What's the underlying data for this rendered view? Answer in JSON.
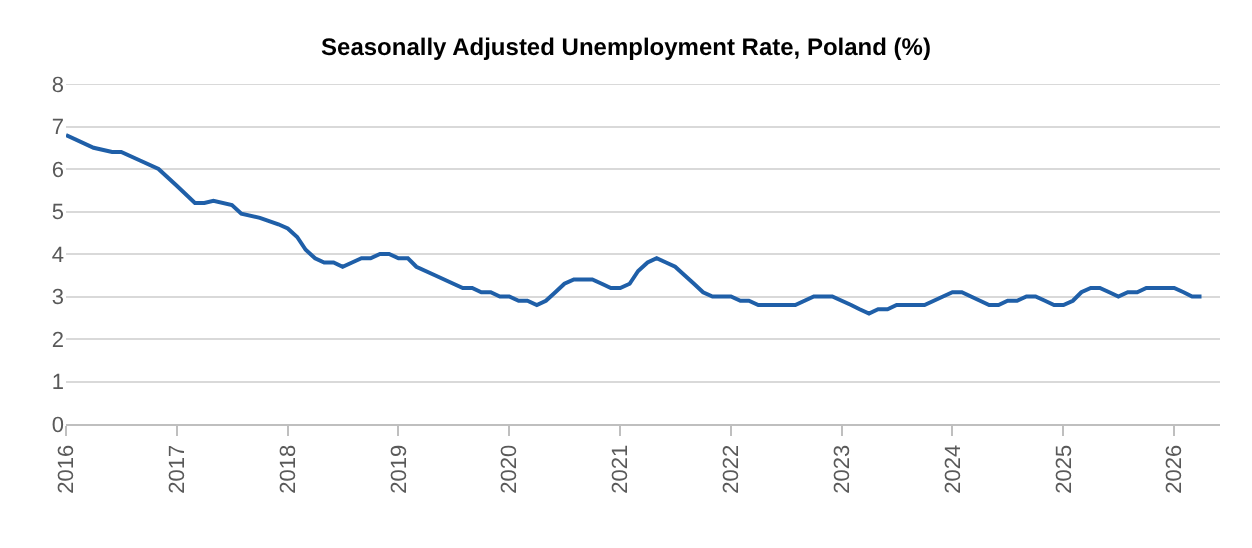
{
  "chart_data": {
    "type": "line",
    "title": "Seasonally Adjusted Unemployment Rate, Poland (%)",
    "x": [
      "2016-01",
      "2016-04",
      "2016-06",
      "2016-07",
      "2016-09",
      "2016-11",
      "2017-01",
      "2017-03",
      "2017-04",
      "2017-05",
      "2017-07",
      "2017-08",
      "2017-10",
      "2017-12",
      "2018-01",
      "2018-02",
      "2018-03",
      "2018-04",
      "2018-05",
      "2018-06",
      "2018-07",
      "2018-08",
      "2018-09",
      "2018-10",
      "2018-11",
      "2018-12",
      "2019-01",
      "2019-02",
      "2019-03",
      "2019-05",
      "2019-07",
      "2019-08",
      "2019-09",
      "2019-10",
      "2019-11",
      "2019-12",
      "2020-01",
      "2020-02",
      "2020-03",
      "2020-04",
      "2020-05",
      "2020-06",
      "2020-07",
      "2020-08",
      "2020-10",
      "2020-11",
      "2020-12",
      "2021-01",
      "2021-02",
      "2021-03",
      "2021-04",
      "2021-05",
      "2021-06",
      "2021-07",
      "2021-08",
      "2021-09",
      "2021-10",
      "2021-11",
      "2022-01",
      "2022-02",
      "2022-03",
      "2022-04",
      "2022-08",
      "2022-10",
      "2022-12",
      "2023-02",
      "2023-03",
      "2023-04",
      "2023-05",
      "2023-06",
      "2023-07",
      "2023-10",
      "2023-12",
      "2024-01",
      "2024-02",
      "2024-04",
      "2024-05",
      "2024-06",
      "2024-07",
      "2024-08",
      "2024-09",
      "2024-10",
      "2024-11",
      "2024-12",
      "2025-01",
      "2025-02",
      "2025-03",
      "2025-04",
      "2025-05",
      "2025-06",
      "2025-07",
      "2025-08",
      "2025-09",
      "2025-10",
      "2025-12",
      "2026-01",
      "2026-02",
      "2026-03",
      "2026-04"
    ],
    "series": [
      {
        "color": "#1f5fa8",
        "values": [
          6.8,
          6.5,
          6.4,
          6.4,
          6.2,
          6.0,
          5.6,
          5.2,
          5.2,
          5.25,
          5.15,
          4.95,
          4.85,
          4.7,
          4.6,
          4.4,
          4.1,
          3.9,
          3.8,
          3.8,
          3.7,
          3.8,
          3.9,
          3.9,
          4.0,
          4.0,
          3.9,
          3.9,
          3.7,
          3.5,
          3.3,
          3.2,
          3.2,
          3.1,
          3.1,
          3.0,
          3.0,
          2.9,
          2.9,
          2.8,
          2.9,
          3.1,
          3.3,
          3.4,
          3.4,
          3.3,
          3.2,
          3.2,
          3.3,
          3.6,
          3.8,
          3.9,
          3.8,
          3.7,
          3.5,
          3.3,
          3.1,
          3.0,
          3.0,
          2.9,
          2.9,
          2.8,
          2.8,
          3.0,
          3.0,
          2.8,
          2.7,
          2.6,
          2.7,
          2.7,
          2.8,
          2.8,
          3.0,
          3.1,
          3.1,
          2.9,
          2.8,
          2.8,
          2.9,
          2.9,
          3.0,
          3.0,
          2.9,
          2.8,
          2.8,
          2.9,
          3.1,
          3.2,
          3.2,
          3.1,
          3.0,
          3.1,
          3.1,
          3.2,
          3.2,
          3.2,
          3.1,
          3.0,
          3.0
        ]
      }
    ],
    "xlim": [
      "2016-01",
      "2026-06"
    ],
    "xticks": [
      "2016",
      "2017",
      "2018",
      "2019",
      "2020",
      "2021",
      "2022",
      "2023",
      "2024",
      "2025",
      "2026"
    ],
    "ylim": [
      0,
      8
    ],
    "yticks": [
      0,
      1,
      2,
      3,
      4,
      5,
      6,
      7,
      8
    ],
    "grid": "y",
    "marker": "none",
    "line_style": "solid"
  }
}
